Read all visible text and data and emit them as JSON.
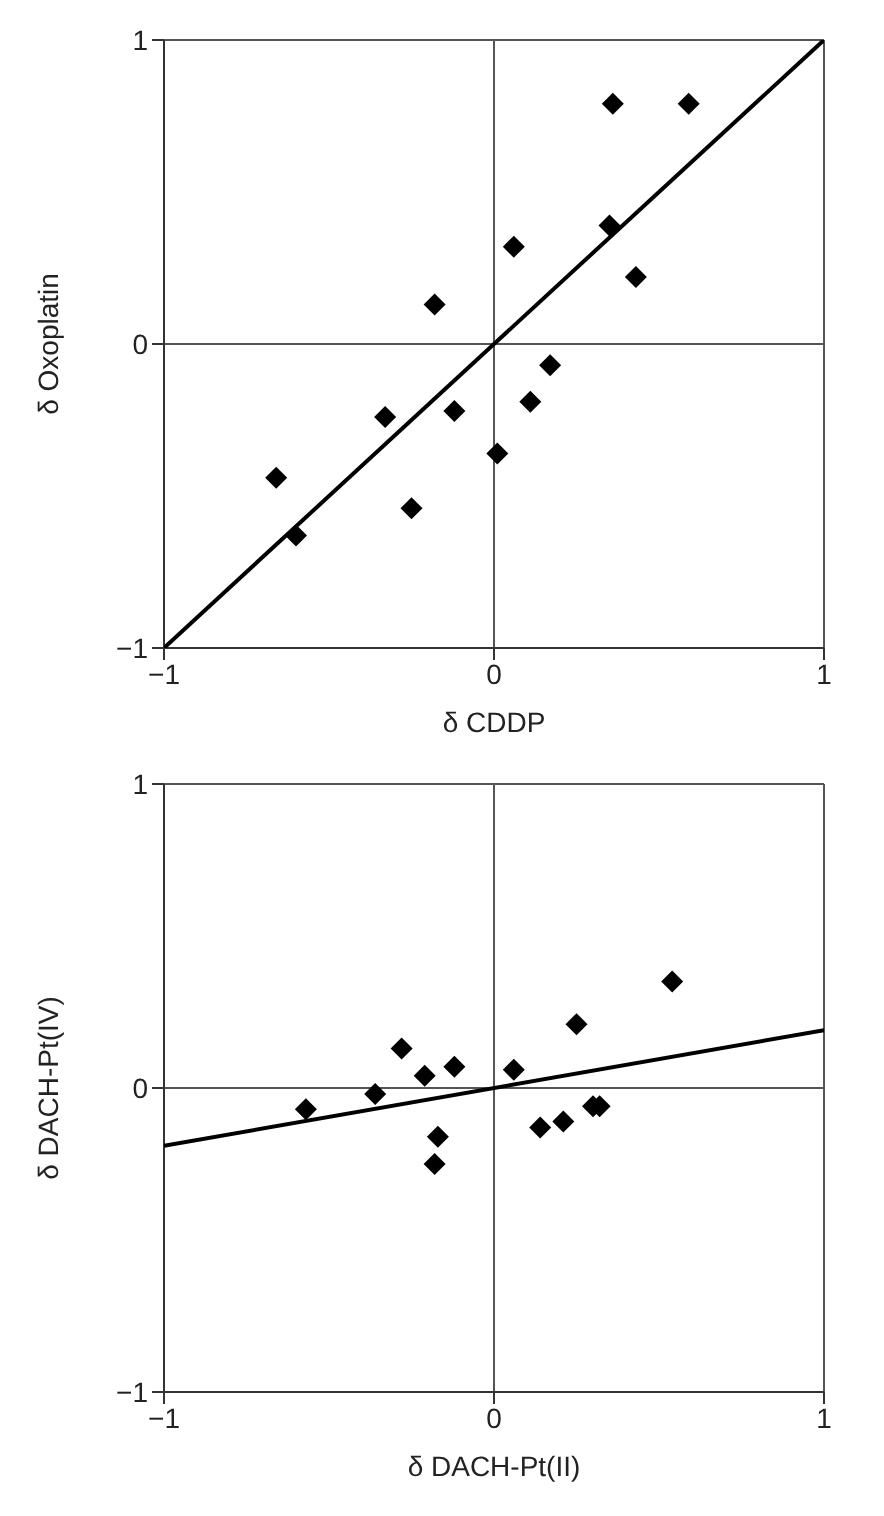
{
  "chart_data": [
    {
      "type": "scatter",
      "xlabel": "δ CDDP",
      "ylabel": "δ Oxoplatin",
      "xlim": [
        -1,
        1
      ],
      "ylim": [
        -1,
        1
      ],
      "xticks": [
        {
          "value": -1,
          "label": "−1"
        },
        {
          "value": 0,
          "label": "0"
        },
        {
          "value": 1,
          "label": "1"
        }
      ],
      "yticks": [
        {
          "value": -1,
          "label": "−1"
        },
        {
          "value": 0,
          "label": "0"
        },
        {
          "value": 1,
          "label": "1"
        }
      ],
      "grid": true,
      "legend": false,
      "series": [
        {
          "marker": "diamond",
          "color": "#000000",
          "x": [
            0.36,
            0.59,
            0.35,
            0.06,
            0.43,
            -0.18,
            0.17,
            0.11,
            -0.33,
            -0.12,
            0.01,
            -0.66,
            -0.25,
            -0.6
          ],
          "values": [
            0.79,
            0.79,
            0.39,
            0.32,
            0.22,
            0.13,
            -0.07,
            -0.19,
            -0.24,
            -0.22,
            -0.36,
            -0.44,
            -0.54,
            -0.63
          ]
        },
        {
          "type": "line",
          "marker": "none",
          "color": "#000000",
          "x": [
            -1,
            1
          ],
          "values": [
            -1,
            1
          ]
        }
      ]
    },
    {
      "type": "scatter",
      "xlabel": "δ DACH-Pt(II)",
      "ylabel": "δ DACH-Pt(IV)",
      "xlim": [
        -1,
        1
      ],
      "ylim": [
        -1,
        1
      ],
      "xticks": [
        {
          "value": -1,
          "label": "−1"
        },
        {
          "value": 0,
          "label": "0"
        },
        {
          "value": 1,
          "label": "1"
        }
      ],
      "yticks": [
        {
          "value": -1,
          "label": "−1"
        },
        {
          "value": 0,
          "label": "0"
        },
        {
          "value": 1,
          "label": "1"
        }
      ],
      "grid": true,
      "legend": false,
      "series": [
        {
          "marker": "diamond",
          "color": "#000000",
          "x": [
            -0.57,
            -0.36,
            -0.28,
            -0.21,
            -0.12,
            -0.17,
            -0.18,
            0.06,
            0.25,
            0.14,
            0.21,
            0.3,
            0.32,
            0.54
          ],
          "values": [
            -0.07,
            -0.02,
            0.13,
            0.04,
            0.07,
            -0.16,
            -0.25,
            0.06,
            0.21,
            -0.13,
            -0.11,
            -0.06,
            -0.06,
            0.35
          ]
        },
        {
          "type": "line",
          "marker": "none",
          "color": "#000000",
          "x": [
            -1,
            1
          ],
          "values": [
            -0.19,
            0.19
          ]
        }
      ]
    }
  ]
}
